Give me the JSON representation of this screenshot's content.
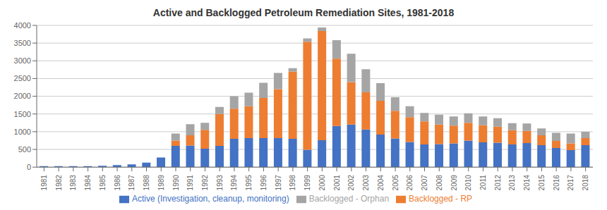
{
  "chart_data": {
    "type": "bar",
    "title": "Active and Backlogged Petroleum Remediation Sites, 1981-2018",
    "categories": [
      1981,
      1982,
      1983,
      1984,
      1985,
      1986,
      1987,
      1988,
      1989,
      1990,
      1991,
      1992,
      1993,
      1994,
      1995,
      1996,
      1997,
      1998,
      1999,
      2000,
      2001,
      2002,
      2003,
      2004,
      2005,
      2006,
      2007,
      2008,
      2009,
      2010,
      2011,
      2012,
      2013,
      2014,
      2015,
      2016,
      2017,
      2018
    ],
    "series": [
      {
        "name": "Active (Investigation, cleanup, monitoring)",
        "color": "#4472C4",
        "values": [
          30,
          30,
          30,
          30,
          40,
          60,
          80,
          130,
          270,
          600,
          610,
          520,
          600,
          800,
          820,
          820,
          820,
          800,
          490,
          760,
          1160,
          1200,
          1060,
          920,
          810,
          710,
          640,
          650,
          670,
          750,
          700,
          690,
          640,
          680,
          620,
          540,
          480,
          620
        ]
      },
      {
        "name": "Backlogged - RP",
        "color": "#ED7D31",
        "values": [
          0,
          0,
          0,
          0,
          0,
          0,
          0,
          0,
          0,
          150,
          290,
          530,
          900,
          850,
          900,
          1130,
          1380,
          1900,
          3050,
          3080,
          1900,
          1200,
          1050,
          950,
          780,
          700,
          650,
          550,
          500,
          500,
          480,
          450,
          400,
          340,
          280,
          200,
          190,
          200
        ]
      },
      {
        "name": "Backlogged - Orphan",
        "color": "#A5A5A5",
        "values": [
          0,
          0,
          0,
          0,
          0,
          0,
          0,
          0,
          0,
          200,
          310,
          200,
          200,
          350,
          380,
          430,
          460,
          90,
          90,
          100,
          520,
          800,
          650,
          500,
          380,
          310,
          240,
          280,
          260,
          270,
          250,
          240,
          200,
          210,
          190,
          230,
          280,
          180
        ]
      }
    ],
    "ylim": [
      0,
      4000
    ],
    "yticks": [
      0,
      500,
      1000,
      1500,
      2000,
      2500,
      3000,
      3500,
      4000
    ],
    "stacked": true,
    "grid": true,
    "legend": "bottom"
  }
}
